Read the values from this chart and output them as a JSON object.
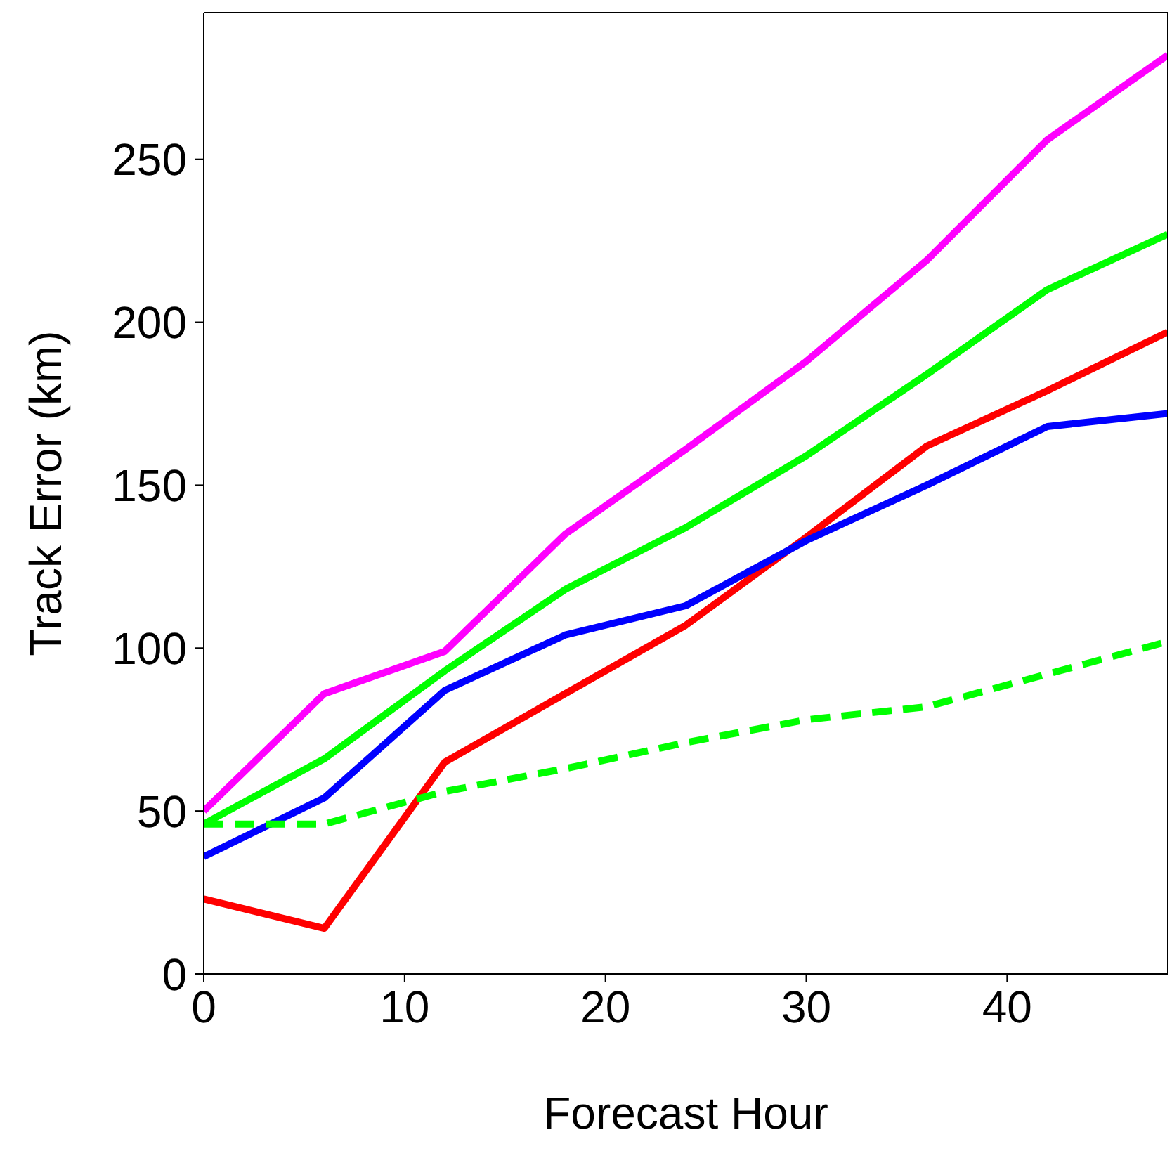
{
  "chart_data": {
    "type": "line",
    "xlabel": "Forecast Hour",
    "ylabel": "Track Error (km)",
    "x": [
      0,
      6,
      12,
      18,
      24,
      30,
      36,
      42,
      48
    ],
    "xlim": [
      0,
      48
    ],
    "xticks": [
      0,
      10,
      20,
      30,
      40
    ],
    "ylim": [
      0,
      295
    ],
    "yticks": [
      0,
      50,
      100,
      150,
      200,
      250
    ],
    "grid": false,
    "legend": false,
    "marker": "none",
    "series": [
      {
        "color": "#ff00ff",
        "line_style": "solid",
        "values": [
          50,
          86,
          99,
          135,
          161,
          188,
          219,
          256,
          282
        ]
      },
      {
        "color": "#00ff00",
        "line_style": "solid",
        "values": [
          46,
          66,
          93,
          118,
          137,
          159,
          184,
          210,
          227
        ]
      },
      {
        "color": "#ff0000",
        "line_style": "solid",
        "values": [
          23,
          14,
          65,
          86,
          107,
          134,
          162,
          179,
          197
        ]
      },
      {
        "color": "#0000ff",
        "line_style": "solid",
        "values": [
          36,
          54,
          87,
          104,
          113,
          133,
          150,
          168,
          172
        ]
      },
      {
        "color": "#00ff00",
        "line_style": "dashed",
        "values": [
          46,
          46,
          56,
          63,
          71,
          78,
          82,
          92,
          102
        ]
      }
    ]
  }
}
